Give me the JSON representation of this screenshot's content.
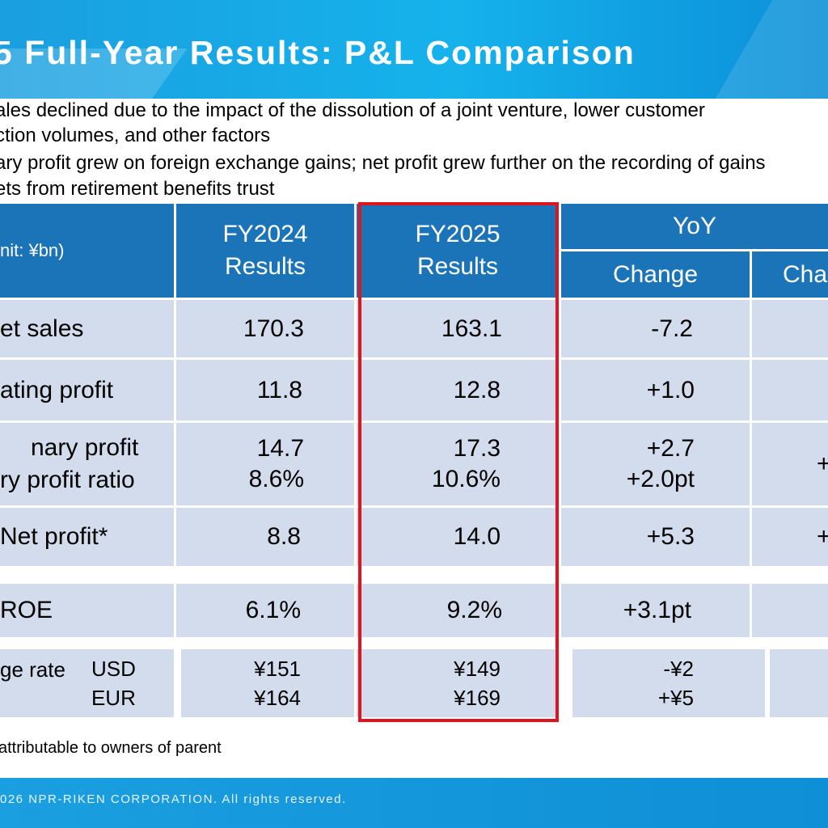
{
  "title": "5 Full-Year Results: P&L Comparison",
  "bullets": [
    "ales declined due to the impact of the dissolution of a joint venture, lower customer",
    "ction volumes, and other factors",
    "ary profit grew on foreign exchange gains; net profit grew further on the recording of gains",
    "ets from retirement benefits trust"
  ],
  "table": {
    "unit_label": "nit: ¥bn)",
    "col_fy2024": [
      "FY2024",
      "Results"
    ],
    "col_fy2025": [
      "FY2025",
      "Results"
    ],
    "col_yoy": "YoY",
    "col_change": "Change",
    "col_change2": "Cha",
    "rows": [
      {
        "label": [
          "et sales"
        ],
        "fy2024": [
          "170.3"
        ],
        "fy2025": [
          "163.1"
        ],
        "change": [
          "-7.2"
        ],
        "change2": [
          ""
        ]
      },
      {
        "label": [
          "ating profit"
        ],
        "fy2024": [
          "11.8"
        ],
        "fy2025": [
          "12.8"
        ],
        "change": [
          "+1.0"
        ],
        "change2": [
          ""
        ]
      },
      {
        "label": [
          "nary profit",
          "ry profit ratio"
        ],
        "fy2024": [
          "14.7",
          "8.6%"
        ],
        "fy2025": [
          "17.3",
          "10.6%"
        ],
        "change": [
          "+2.7",
          "+2.0pt"
        ],
        "change2": [
          "+"
        ]
      },
      {
        "label": [
          "Net profit*"
        ],
        "fy2024": [
          "8.8"
        ],
        "fy2025": [
          "14.0"
        ],
        "change": [
          "+5.3"
        ],
        "change2": [
          "+"
        ]
      },
      {
        "label": [
          "ROE"
        ],
        "fy2024": [
          "6.1%"
        ],
        "fy2025": [
          "9.2%"
        ],
        "change": [
          "+3.1pt"
        ],
        "change2": [
          ""
        ]
      },
      {
        "label": [
          "ge rate"
        ],
        "currencies": [
          "USD",
          "EUR"
        ],
        "fy2024": [
          "¥151",
          "¥164"
        ],
        "fy2025": [
          "¥149",
          "¥169"
        ],
        "change": [
          "-¥2",
          "+¥5"
        ],
        "change2": [
          ""
        ]
      }
    ]
  },
  "footnote": "attributable to owners of parent",
  "copyright": "026 NPR-RIKEN CORPORATION. All rights reserved.",
  "colors": {
    "header_blue": "#1c74b8",
    "row_fill": "#d2dcec",
    "highlight_red": "#e0141e",
    "banner_blue": "#15b2ec"
  }
}
